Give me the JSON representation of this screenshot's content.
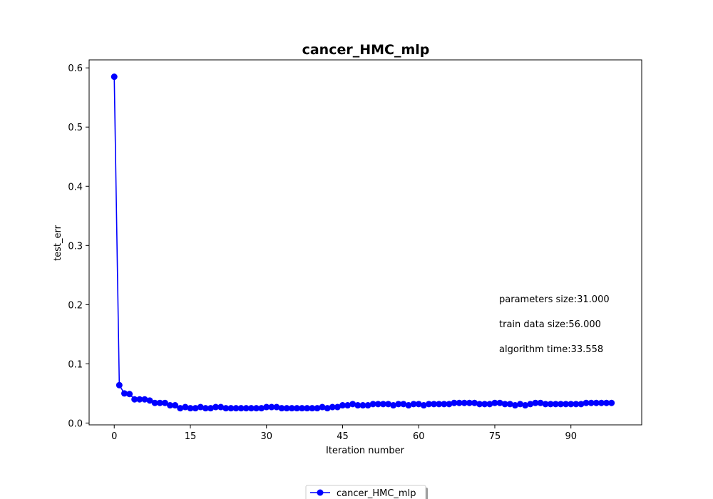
{
  "chart_data": {
    "type": "line",
    "title": "cancer_HMC_mlp",
    "xlabel": "Iteration number",
    "ylabel": "test_err",
    "xlim": [
      -4.95,
      103.95
    ],
    "ylim": [
      -0.0031,
      0.6135
    ],
    "xticks": [
      0,
      15,
      30,
      45,
      60,
      75,
      90
    ],
    "yticks": [
      0.0,
      0.1,
      0.2,
      0.3,
      0.4,
      0.5,
      0.6
    ],
    "ytick_labels": [
      "0.0",
      "0.1",
      "0.2",
      "0.3",
      "0.4",
      "0.5",
      "0.6"
    ],
    "grid": false,
    "legend_position": "below-center",
    "series": [
      {
        "name": "cancer_HMC_mlp",
        "color": "#0000ff",
        "marker": "circle",
        "x": [
          0,
          1,
          2,
          3,
          4,
          5,
          6,
          7,
          8,
          9,
          10,
          11,
          12,
          13,
          14,
          15,
          16,
          17,
          18,
          19,
          20,
          21,
          22,
          23,
          24,
          25,
          26,
          27,
          28,
          29,
          30,
          31,
          32,
          33,
          34,
          35,
          36,
          37,
          38,
          39,
          40,
          41,
          42,
          43,
          44,
          45,
          46,
          47,
          48,
          49,
          50,
          51,
          52,
          53,
          54,
          55,
          56,
          57,
          58,
          59,
          60,
          61,
          62,
          63,
          64,
          65,
          66,
          67,
          68,
          69,
          70,
          71,
          72,
          73,
          74,
          75,
          76,
          77,
          78,
          79,
          80,
          81,
          82,
          83,
          84,
          85,
          86,
          87,
          88,
          89,
          90,
          91,
          92,
          93,
          94,
          95,
          96,
          97,
          98
        ],
        "y": [
          0.585,
          0.064,
          0.05,
          0.049,
          0.04,
          0.04,
          0.04,
          0.038,
          0.034,
          0.034,
          0.034,
          0.03,
          0.03,
          0.025,
          0.027,
          0.025,
          0.025,
          0.027,
          0.025,
          0.025,
          0.027,
          0.027,
          0.025,
          0.025,
          0.025,
          0.025,
          0.025,
          0.025,
          0.025,
          0.025,
          0.027,
          0.027,
          0.027,
          0.025,
          0.025,
          0.025,
          0.025,
          0.025,
          0.025,
          0.025,
          0.025,
          0.027,
          0.025,
          0.027,
          0.027,
          0.03,
          0.03,
          0.032,
          0.03,
          0.03,
          0.03,
          0.032,
          0.032,
          0.032,
          0.032,
          0.03,
          0.032,
          0.032,
          0.03,
          0.032,
          0.032,
          0.03,
          0.032,
          0.032,
          0.032,
          0.032,
          0.032,
          0.034,
          0.034,
          0.034,
          0.034,
          0.034,
          0.032,
          0.032,
          0.032,
          0.034,
          0.034,
          0.032,
          0.032,
          0.03,
          0.032,
          0.03,
          0.032,
          0.034,
          0.034,
          0.032,
          0.032,
          0.032,
          0.032,
          0.032,
          0.032,
          0.032,
          0.032,
          0.034,
          0.034,
          0.034,
          0.034,
          0.034,
          0.034
        ]
      }
    ],
    "annotations": [
      "parameters size:31.000",
      "train data size:56.000",
      "algorithm time:33.558"
    ]
  }
}
